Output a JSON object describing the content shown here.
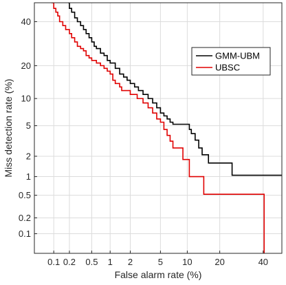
{
  "chart_data": {
    "type": "line",
    "title": "",
    "xlabel": "False alarm rate (%)",
    "ylabel": "Miss detection rate (%)",
    "x_scale": "probit",
    "y_scale": "probit",
    "xlim": [
      0.04,
      50
    ],
    "ylim": [
      0.04,
      50
    ],
    "x_ticks": [
      0.1,
      0.2,
      0.5,
      1,
      2,
      5,
      10,
      20,
      40
    ],
    "x_tick_labels": [
      "0.1",
      "0.2",
      "0.5",
      "1",
      "2",
      "5",
      "10",
      "20",
      "40"
    ],
    "y_ticks": [
      0.1,
      0.2,
      0.5,
      1,
      2,
      5,
      10,
      20,
      40
    ],
    "y_tick_labels": [
      "0.1",
      "0.2",
      "0.5",
      "1",
      "2",
      "5",
      "10",
      "20",
      "40"
    ],
    "grid": true,
    "legend_position": "right",
    "series": [
      {
        "name": "GMM-UBM",
        "color": "#000000",
        "points": [
          [
            0.19,
            50
          ],
          [
            0.2,
            47
          ],
          [
            0.22,
            45
          ],
          [
            0.25,
            42
          ],
          [
            0.28,
            40
          ],
          [
            0.32,
            38
          ],
          [
            0.36,
            36
          ],
          [
            0.4,
            34
          ],
          [
            0.45,
            32
          ],
          [
            0.5,
            30
          ],
          [
            0.55,
            28
          ],
          [
            0.6,
            27
          ],
          [
            0.7,
            25
          ],
          [
            0.8,
            24
          ],
          [
            0.9,
            22
          ],
          [
            1.0,
            21
          ],
          [
            1.2,
            19
          ],
          [
            1.4,
            17
          ],
          [
            1.6,
            16
          ],
          [
            1.8,
            15
          ],
          [
            2.0,
            14
          ],
          [
            2.3,
            13
          ],
          [
            2.6,
            12
          ],
          [
            3.0,
            11
          ],
          [
            3.5,
            10
          ],
          [
            4.0,
            9
          ],
          [
            4.5,
            8
          ],
          [
            5.0,
            7
          ],
          [
            5.5,
            6.5
          ],
          [
            6.0,
            6
          ],
          [
            6.5,
            5.5
          ],
          [
            7.0,
            5.2
          ],
          [
            8.0,
            5.2
          ],
          [
            9.0,
            5.2
          ],
          [
            10.0,
            5.2
          ],
          [
            10.5,
            4.5
          ],
          [
            11.0,
            4.0
          ],
          [
            12.0,
            3.3
          ],
          [
            13.0,
            2.6
          ],
          [
            14.0,
            2.1
          ],
          [
            15.0,
            2.1
          ],
          [
            16.0,
            1.6
          ],
          [
            18.0,
            1.6
          ],
          [
            20.0,
            1.6
          ],
          [
            22.0,
            1.6
          ],
          [
            24.0,
            1.6
          ],
          [
            25.0,
            1.05
          ],
          [
            30.0,
            1.05
          ],
          [
            40.0,
            1.05
          ],
          [
            50.0,
            1.05
          ]
        ]
      },
      {
        "name": "UBSC",
        "color": "#e00000",
        "points": [
          [
            0.09,
            50
          ],
          [
            0.1,
            47
          ],
          [
            0.11,
            45
          ],
          [
            0.12,
            43
          ],
          [
            0.13,
            40
          ],
          [
            0.15,
            38
          ],
          [
            0.17,
            36
          ],
          [
            0.2,
            34
          ],
          [
            0.22,
            32
          ],
          [
            0.25,
            30
          ],
          [
            0.28,
            28
          ],
          [
            0.32,
            27
          ],
          [
            0.36,
            26
          ],
          [
            0.4,
            24
          ],
          [
            0.45,
            23
          ],
          [
            0.5,
            22
          ],
          [
            0.6,
            21
          ],
          [
            0.7,
            20
          ],
          [
            0.8,
            19
          ],
          [
            0.9,
            18
          ],
          [
            1.0,
            17
          ],
          [
            1.1,
            15
          ],
          [
            1.2,
            14
          ],
          [
            1.4,
            13
          ],
          [
            1.5,
            12
          ],
          [
            1.8,
            12
          ],
          [
            2.0,
            11
          ],
          [
            2.5,
            10
          ],
          [
            3.0,
            9
          ],
          [
            3.5,
            8
          ],
          [
            4.0,
            7
          ],
          [
            4.5,
            6
          ],
          [
            5.0,
            5.5
          ],
          [
            5.5,
            4.5
          ],
          [
            6.0,
            3.8
          ],
          [
            6.5,
            3.2
          ],
          [
            7.0,
            2.6
          ],
          [
            8.0,
            2.6
          ],
          [
            9.0,
            1.8
          ],
          [
            10.0,
            1.8
          ],
          [
            10.5,
            1.0
          ],
          [
            12.0,
            1.0
          ],
          [
            13.0,
            1.0
          ],
          [
            14.0,
            1.0
          ],
          [
            14.5,
            0.52
          ],
          [
            20.0,
            0.52
          ],
          [
            30.0,
            0.52
          ],
          [
            40.0,
            0.52
          ],
          [
            40.5,
            0.04
          ]
        ]
      }
    ]
  }
}
